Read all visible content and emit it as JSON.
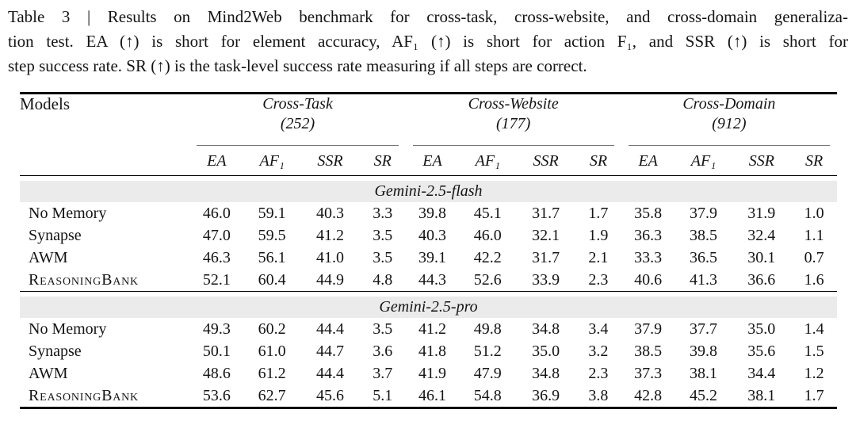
{
  "caption": {
    "lines": [
      "Table 3 | Results on Mind2Web benchmark for cross-task, cross-website, and cross-domain generaliza-",
      "tion test. EA (↑) is short for element accuracy, AF₁ (↑) is short for action F₁, and SSR (↑) is short for",
      "step success rate. SR (↑) is the task-level success rate measuring if all steps are correct."
    ]
  },
  "table": {
    "models_header": "Models",
    "groups": [
      {
        "name": "Cross-Task",
        "count": "(252)"
      },
      {
        "name": "Cross-Website",
        "count": "(177)"
      },
      {
        "name": "Cross-Domain",
        "count": "(912)"
      }
    ],
    "metric_headers": [
      "EA",
      "AF₁",
      "SSR",
      "SR"
    ],
    "sections": [
      {
        "title": "Gemini-2.5-flash",
        "rows": [
          {
            "model": "No Memory",
            "emphasis": false,
            "values": [
              "46.0",
              "59.1",
              "40.3",
              "3.3",
              "39.8",
              "45.1",
              "31.7",
              "1.7",
              "35.8",
              "37.9",
              "31.9",
              "1.0"
            ]
          },
          {
            "model": "Synapse",
            "emphasis": false,
            "values": [
              "47.0",
              "59.5",
              "41.2",
              "3.5",
              "40.3",
              "46.0",
              "32.1",
              "1.9",
              "36.3",
              "38.5",
              "32.4",
              "1.1"
            ]
          },
          {
            "model": "AWM",
            "emphasis": false,
            "values": [
              "46.3",
              "56.1",
              "41.0",
              "3.5",
              "39.1",
              "42.2",
              "31.7",
              "2.1",
              "33.3",
              "36.5",
              "30.1",
              "0.7"
            ]
          },
          {
            "model": "ReasoningBank",
            "emphasis": true,
            "values": [
              "52.1",
              "60.4",
              "44.9",
              "4.8",
              "44.3",
              "52.6",
              "33.9",
              "2.3",
              "40.6",
              "41.3",
              "36.6",
              "1.6"
            ]
          }
        ]
      },
      {
        "title": "Gemini-2.5-pro",
        "rows": [
          {
            "model": "No Memory",
            "emphasis": false,
            "values": [
              "49.3",
              "60.2",
              "44.4",
              "3.5",
              "41.2",
              "49.8",
              "34.8",
              "3.4",
              "37.9",
              "37.7",
              "35.0",
              "1.4"
            ]
          },
          {
            "model": "Synapse",
            "emphasis": false,
            "values": [
              "50.1",
              "61.0",
              "44.7",
              "3.6",
              "41.8",
              "51.2",
              "35.0",
              "3.2",
              "38.5",
              "39.8",
              "35.6",
              "1.5"
            ]
          },
          {
            "model": "AWM",
            "emphasis": false,
            "values": [
              "48.6",
              "61.2",
              "44.4",
              "3.7",
              "41.9",
              "47.9",
              "34.8",
              "2.3",
              "37.3",
              "38.1",
              "34.4",
              "1.2"
            ]
          },
          {
            "model": "ReasoningBank",
            "emphasis": true,
            "values": [
              "53.6",
              "62.7",
              "45.6",
              "5.1",
              "46.1",
              "54.8",
              "36.9",
              "3.8",
              "42.8",
              "45.2",
              "38.1",
              "1.7"
            ]
          }
        ]
      }
    ]
  },
  "colors": {
    "band_background": "#ebebeb",
    "text": "#141414",
    "rule": "#000000"
  }
}
